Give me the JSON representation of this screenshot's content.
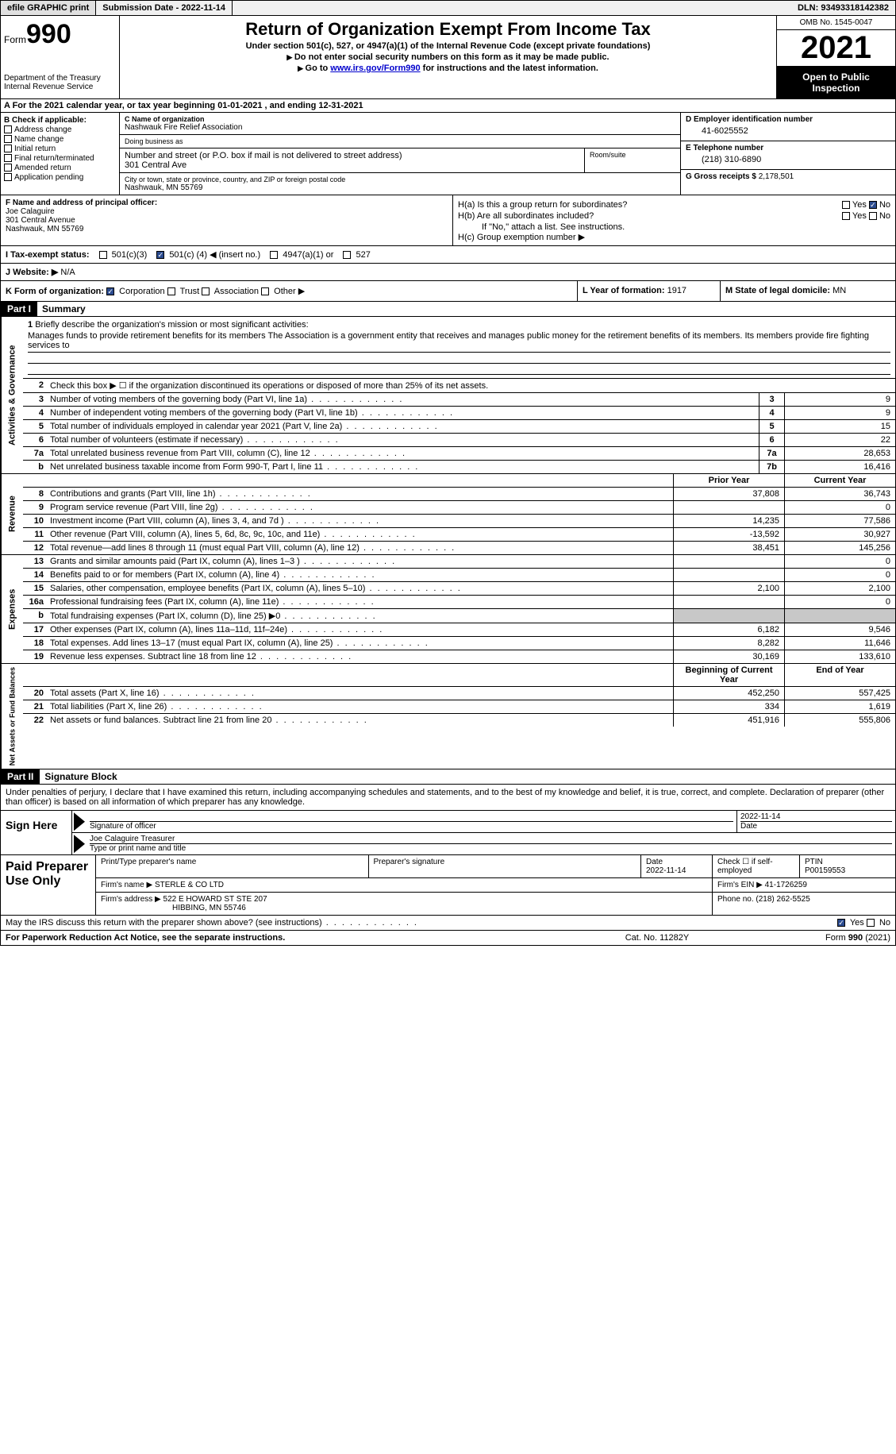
{
  "topbar": {
    "efile": "efile GRAPHIC print",
    "submission": "Submission Date - 2022-11-14",
    "dln": "DLN: 93493318142382"
  },
  "header": {
    "form_label": "Form",
    "form_num": "990",
    "dept": "Department of the Treasury",
    "irs": "Internal Revenue Service",
    "title": "Return of Organization Exempt From Income Tax",
    "sub1": "Under section 501(c), 527, or 4947(a)(1) of the Internal Revenue Code (except private foundations)",
    "sub2": "Do not enter social security numbers on this form as it may be made public.",
    "sub3_pre": "Go to ",
    "sub3_link": "www.irs.gov/Form990",
    "sub3_post": " for instructions and the latest information.",
    "omb": "OMB No. 1545-0047",
    "year": "2021",
    "open": "Open to Public Inspection"
  },
  "line_a": "A For the 2021 calendar year, or tax year beginning 01-01-2021   , and ending 12-31-2021",
  "col_b": {
    "hdr": "B Check if applicable:",
    "opts": [
      "Address change",
      "Name change",
      "Initial return",
      "Final return/terminated",
      "Amended return",
      "Application pending"
    ]
  },
  "col_c": {
    "name_lbl": "C Name of organization",
    "name": "Nashwauk Fire Relief Association",
    "dba_lbl": "Doing business as",
    "dba": "",
    "street_lbl": "Number and street (or P.O. box if mail is not delivered to street address)",
    "street": "301 Central Ave",
    "room_lbl": "Room/suite",
    "city_lbl": "City or town, state or province, country, and ZIP or foreign postal code",
    "city": "Nashwauk, MN  55769"
  },
  "col_d": {
    "ein_lbl": "D Employer identification number",
    "ein": "41-6025552",
    "tel_lbl": "E Telephone number",
    "tel": "(218) 310-6890",
    "gross_lbl": "G Gross receipts $",
    "gross": "2,178,501"
  },
  "col_f": {
    "lbl": "F  Name and address of principal officer:",
    "name": "Joe Calaguire",
    "addr1": "301 Central Avenue",
    "addr2": "Nashwauk, MN  55769"
  },
  "col_h": {
    "a_lbl": "H(a)  Is this a group return for subordinates?",
    "b_lbl": "H(b)  Are all subordinates included?",
    "note": "If \"No,\" attach a list. See instructions.",
    "c_lbl": "H(c)  Group exemption number ▶"
  },
  "row_i": {
    "lbl": "I  Tax-exempt status:",
    "c3": "501(c)(3)",
    "c_pre": "501(c) (",
    "c_num": "4",
    "c_post": ") ◀ (insert no.)",
    "a1": "4947(a)(1) or",
    "527": "527"
  },
  "row_j": {
    "lbl": "J  Website: ▶",
    "val": "N/A"
  },
  "row_k": {
    "lbl": "K Form of organization:",
    "corp": "Corporation",
    "trust": "Trust",
    "assoc": "Association",
    "other": "Other ▶",
    "l_lbl": "L Year of formation:",
    "l_val": "1917",
    "m_lbl": "M State of legal domicile:",
    "m_val": "MN"
  },
  "part1": {
    "hdr": "Part I",
    "title": "Summary"
  },
  "mission": {
    "num": "1",
    "lbl": "Briefly describe the organization's mission or most significant activities:",
    "txt": "Manages funds to provide retirement benefits for its members The Association is a government entity that receives and manages public money for the retirement benefits of its members. Its members provide fire fighting services to"
  },
  "line2": {
    "num": "2",
    "desc": "Check this box ▶ ☐ if the organization discontinued its operations or disposed of more than 25% of its net assets."
  },
  "sections": {
    "activities": {
      "label": "Activities & Governance",
      "rows": [
        {
          "n": "3",
          "d": "Number of voting members of the governing body (Part VI, line 1a)",
          "b": "3",
          "v": "9"
        },
        {
          "n": "4",
          "d": "Number of independent voting members of the governing body (Part VI, line 1b)",
          "b": "4",
          "v": "9"
        },
        {
          "n": "5",
          "d": "Total number of individuals employed in calendar year 2021 (Part V, line 2a)",
          "b": "5",
          "v": "15"
        },
        {
          "n": "6",
          "d": "Total number of volunteers (estimate if necessary)",
          "b": "6",
          "v": "22"
        },
        {
          "n": "7a",
          "d": "Total unrelated business revenue from Part VIII, column (C), line 12",
          "b": "7a",
          "v": "28,653"
        },
        {
          "n": "b",
          "d": "Net unrelated business taxable income from Form 990-T, Part I, line 11",
          "b": "7b",
          "v": "16,416"
        }
      ]
    },
    "revenue": {
      "label": "Revenue",
      "hdr_prior": "Prior Year",
      "hdr_current": "Current Year",
      "rows": [
        {
          "n": "8",
          "d": "Contributions and grants (Part VIII, line 1h)",
          "p": "37,808",
          "c": "36,743"
        },
        {
          "n": "9",
          "d": "Program service revenue (Part VIII, line 2g)",
          "p": "",
          "c": "0"
        },
        {
          "n": "10",
          "d": "Investment income (Part VIII, column (A), lines 3, 4, and 7d )",
          "p": "14,235",
          "c": "77,586"
        },
        {
          "n": "11",
          "d": "Other revenue (Part VIII, column (A), lines 5, 6d, 8c, 9c, 10c, and 11e)",
          "p": "-13,592",
          "c": "30,927"
        },
        {
          "n": "12",
          "d": "Total revenue—add lines 8 through 11 (must equal Part VIII, column (A), line 12)",
          "p": "38,451",
          "c": "145,256"
        }
      ]
    },
    "expenses": {
      "label": "Expenses",
      "rows": [
        {
          "n": "13",
          "d": "Grants and similar amounts paid (Part IX, column (A), lines 1–3 )",
          "p": "",
          "c": "0"
        },
        {
          "n": "14",
          "d": "Benefits paid to or for members (Part IX, column (A), line 4)",
          "p": "",
          "c": "0"
        },
        {
          "n": "15",
          "d": "Salaries, other compensation, employee benefits (Part IX, column (A), lines 5–10)",
          "p": "2,100",
          "c": "2,100"
        },
        {
          "n": "16a",
          "d": "Professional fundraising fees (Part IX, column (A), line 11e)",
          "p": "",
          "c": "0"
        },
        {
          "n": "b",
          "d": "Total fundraising expenses (Part IX, column (D), line 25) ▶0",
          "p": "GREY",
          "c": "GREY"
        },
        {
          "n": "17",
          "d": "Other expenses (Part IX, column (A), lines 11a–11d, 11f–24e)",
          "p": "6,182",
          "c": "9,546"
        },
        {
          "n": "18",
          "d": "Total expenses. Add lines 13–17 (must equal Part IX, column (A), line 25)",
          "p": "8,282",
          "c": "11,646"
        },
        {
          "n": "19",
          "d": "Revenue less expenses. Subtract line 18 from line 12",
          "p": "30,169",
          "c": "133,610"
        }
      ]
    },
    "netassets": {
      "label": "Net Assets or Fund Balances",
      "hdr_prior": "Beginning of Current Year",
      "hdr_current": "End of Year",
      "rows": [
        {
          "n": "20",
          "d": "Total assets (Part X, line 16)",
          "p": "452,250",
          "c": "557,425"
        },
        {
          "n": "21",
          "d": "Total liabilities (Part X, line 26)",
          "p": "334",
          "c": "1,619"
        },
        {
          "n": "22",
          "d": "Net assets or fund balances. Subtract line 21 from line 20",
          "p": "451,916",
          "c": "555,806"
        }
      ]
    }
  },
  "part2": {
    "hdr": "Part II",
    "title": "Signature Block",
    "intro": "Under penalties of perjury, I declare that I have examined this return, including accompanying schedules and statements, and to the best of my knowledge and belief, it is true, correct, and complete. Declaration of preparer (other than officer) is based on all information of which preparer has any knowledge."
  },
  "sign": {
    "lbl": "Sign Here",
    "sig_lbl": "Signature of officer",
    "date": "2022-11-14",
    "date_lbl": "Date",
    "name": "Joe Calaguire Treasurer",
    "name_lbl": "Type or print name and title"
  },
  "prep": {
    "lbl": "Paid Preparer Use Only",
    "name_lbl": "Print/Type preparer's name",
    "sig_lbl": "Preparer's signature",
    "date_lbl": "Date",
    "date": "2022-11-14",
    "check_lbl": "Check ☐ if self-employed",
    "ptin_lbl": "PTIN",
    "ptin": "P00159553",
    "firm_name_lbl": "Firm's name    ▶",
    "firm_name": "STERLE & CO LTD",
    "firm_ein_lbl": "Firm's EIN ▶",
    "firm_ein": "41-1726259",
    "firm_addr_lbl": "Firm's address ▶",
    "firm_addr1": "522 E HOWARD ST STE 207",
    "firm_addr2": "HIBBING, MN  55746",
    "phone_lbl": "Phone no.",
    "phone": "(218) 262-5525"
  },
  "discuss": "May the IRS discuss this return with the preparer shown above? (see instructions)",
  "footer": {
    "l": "For Paperwork Reduction Act Notice, see the separate instructions.",
    "m": "Cat. No. 11282Y",
    "r": "Form 990 (2021)"
  },
  "yes": "Yes",
  "no": "No"
}
